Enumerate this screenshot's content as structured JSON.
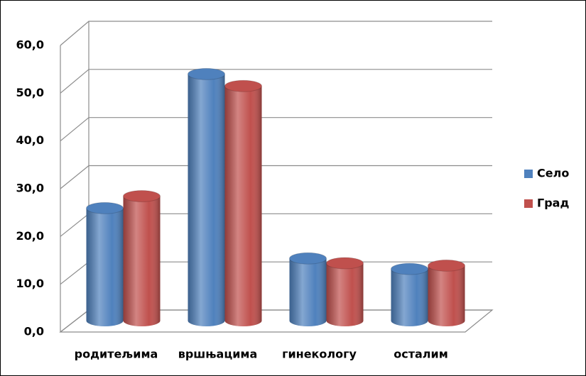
{
  "chart_data": {
    "type": "bar3d",
    "categories": [
      "родитељима",
      "вршњацима",
      "гинекологу",
      "осталим"
    ],
    "series": [
      {
        "name": "Село",
        "color": "#4f81bd",
        "values": [
          23.5,
          51.5,
          13.0,
          10.8
        ]
      },
      {
        "name": "Град",
        "color": "#c0504d",
        "values": [
          26.0,
          49.0,
          12.0,
          11.5
        ]
      }
    ],
    "ylim": [
      0,
      60
    ],
    "yticks": [
      {
        "value": 0,
        "label": "0,0"
      },
      {
        "value": 10,
        "label": "10,0"
      },
      {
        "value": 20,
        "label": "20,0"
      },
      {
        "value": 30,
        "label": "30,0"
      },
      {
        "value": 40,
        "label": "40,0"
      },
      {
        "value": 50,
        "label": "50,0"
      },
      {
        "value": 60,
        "label": "60,0"
      }
    ],
    "grid": true,
    "legend": "right"
  }
}
